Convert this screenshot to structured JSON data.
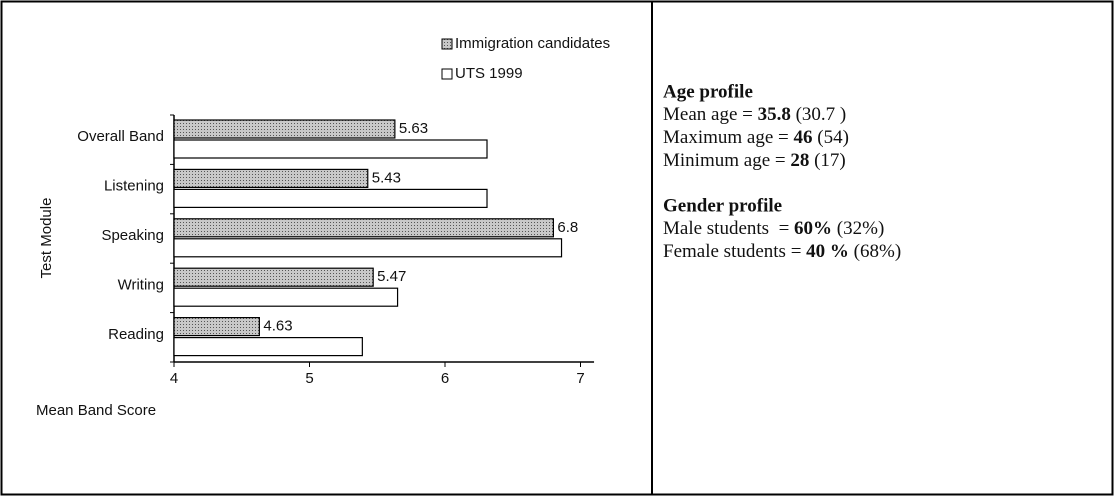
{
  "chart_data": {
    "type": "hbar",
    "x_label": "Mean Band Score",
    "y_label": "Test Module",
    "categories": [
      "Overall Band",
      "Listening",
      "Speaking",
      "Writing",
      "Reading"
    ],
    "series": [
      {
        "name": "Immigration candidates",
        "color": "#b3b3b3",
        "values": [
          5.63,
          5.43,
          6.8,
          5.47,
          4.63
        ]
      },
      {
        "name": "UTS 1999",
        "color": "#ffffff",
        "values": [
          6.31,
          6.31,
          6.86,
          5.65,
          5.39
        ]
      }
    ],
    "xlim": [
      4,
      7.1
    ],
    "xticks": [
      4,
      5,
      6,
      7
    ],
    "legend": "upper right"
  },
  "panel": {
    "sections": [
      {
        "heading": "Age profile",
        "lines": [
          [
            {
              "text": "Mean age = "
            },
            {
              "text": "35.8",
              "bold": true
            },
            {
              "text": " (30.7 )"
            }
          ],
          [
            {
              "text": "Maximum age = "
            },
            {
              "text": "46",
              "bold": true
            },
            {
              "text": " (54)"
            }
          ],
          [
            {
              "text": "Minimum age = "
            },
            {
              "text": "28",
              "bold": true
            },
            {
              "text": " (17)"
            }
          ]
        ]
      },
      {
        "heading": "Gender profile",
        "lines": [
          [
            {
              "text": "Male students  = "
            },
            {
              "text": "60%",
              "bold": true
            },
            {
              "text": " (32%)"
            }
          ],
          [
            {
              "text": "Female students = "
            },
            {
              "text": "40 %",
              "bold": true
            },
            {
              "text": " (68%)"
            }
          ]
        ]
      }
    ]
  }
}
